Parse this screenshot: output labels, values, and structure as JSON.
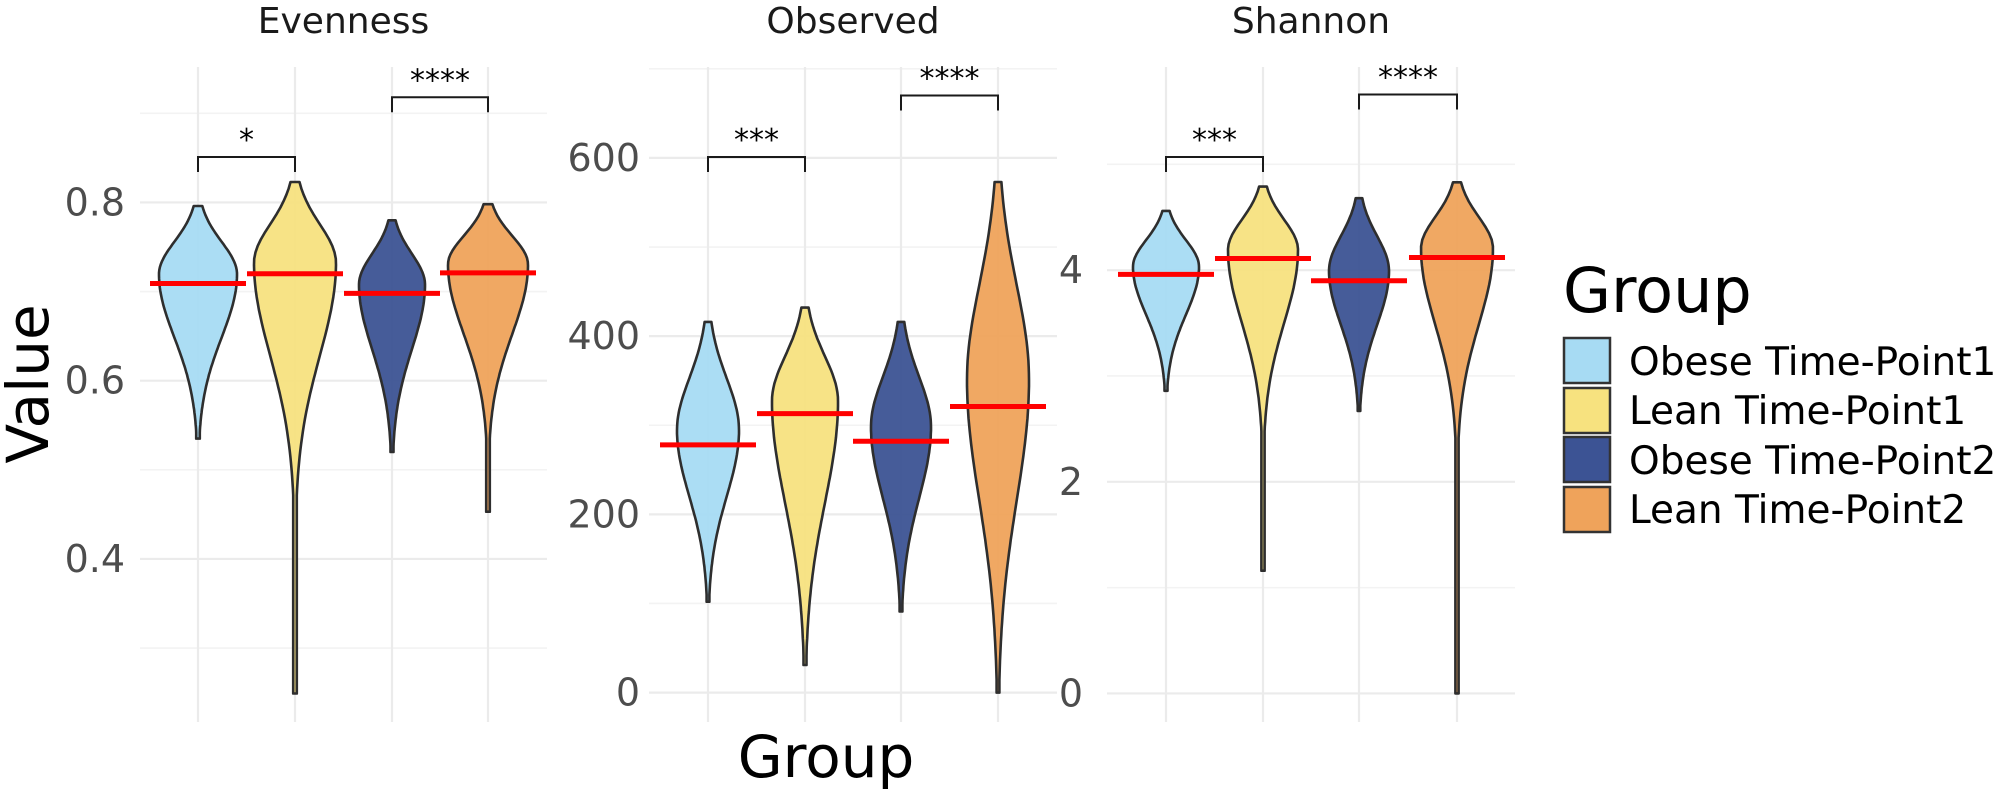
{
  "chart_data": {
    "type": "violin",
    "ylabel": "Value",
    "xlabel": "Group",
    "legend": {
      "title": "Group",
      "position": "right",
      "entries": [
        {
          "label": "Obese Time-Point1",
          "color": "#A7DBF3"
        },
        {
          "label": "Lean Time-Point1",
          "color": "#F7E27F"
        },
        {
          "label": "Obese Time-Point2",
          "color": "#3C5394"
        },
        {
          "label": "Lean Time-Point2",
          "color": "#EFA35B"
        }
      ]
    },
    "median_line_color": "#FF0000",
    "grid": true,
    "x_tick_labels_shown": false,
    "facets": [
      {
        "title": "Evenness",
        "ylim": [
          0.217,
          0.952
        ],
        "major_ticks": [
          0.4,
          0.6,
          0.8
        ],
        "tick_labels": [
          "0.4",
          "0.6",
          "0.8"
        ],
        "minor_ticks": [
          0.3,
          0.5,
          0.7,
          0.9
        ],
        "violins": [
          {
            "group": "Obese Time-Point1",
            "min": 0.535,
            "max": 0.796,
            "median": 0.709
          },
          {
            "group": "Lean Time-Point1",
            "min": 0.249,
            "max": 0.823,
            "median": 0.72
          },
          {
            "group": "Obese Time-Point2",
            "min": 0.52,
            "max": 0.78,
            "median": 0.698
          },
          {
            "group": "Lean Time-Point2",
            "min": 0.453,
            "max": 0.798,
            "median": 0.721
          }
        ],
        "brackets": [
          {
            "from": "Obese Time-Point1",
            "to": "Lean Time-Point1",
            "y": 0.851,
            "label": "*"
          },
          {
            "from": "Obese Time-Point2",
            "to": "Lean Time-Point2",
            "y": 0.918,
            "label": "****"
          }
        ]
      },
      {
        "title": "Observed",
        "ylim": [
          -33,
          702
        ],
        "major_ticks": [
          0,
          200,
          400,
          600
        ],
        "tick_labels": [
          "0",
          "200",
          "400",
          "600"
        ],
        "minor_ticks": [
          100,
          300,
          500,
          700
        ],
        "violins": [
          {
            "group": "Obese Time-Point1",
            "min": 102,
            "max": 416,
            "median": 278
          },
          {
            "group": "Lean Time-Point1",
            "min": 31,
            "max": 432,
            "median": 313
          },
          {
            "group": "Obese Time-Point2",
            "min": 91,
            "max": 416,
            "median": 282
          },
          {
            "group": "Lean Time-Point2",
            "min": 0,
            "max": 573,
            "median": 321
          }
        ],
        "brackets": [
          {
            "from": "Obese Time-Point1",
            "to": "Lean Time-Point1",
            "y": 601,
            "label": "***"
          },
          {
            "from": "Obese Time-Point2",
            "to": "Lean Time-Point2",
            "y": 670,
            "label": "****"
          }
        ]
      },
      {
        "title": "Shannon",
        "ylim": [
          -0.27,
          5.92
        ],
        "major_ticks": [
          0,
          2,
          4
        ],
        "tick_labels": [
          "0",
          "2",
          "4"
        ],
        "minor_ticks": [
          1,
          3,
          5
        ],
        "violins": [
          {
            "group": "Obese Time-Point1",
            "min": 2.86,
            "max": 4.56,
            "median": 3.96
          },
          {
            "group": "Lean Time-Point1",
            "min": 1.16,
            "max": 4.79,
            "median": 4.11
          },
          {
            "group": "Obese Time-Point2",
            "min": 2.67,
            "max": 4.68,
            "median": 3.9
          },
          {
            "group": "Lean Time-Point2",
            "min": 0.0,
            "max": 4.83,
            "median": 4.12
          }
        ],
        "brackets": [
          {
            "from": "Obese Time-Point1",
            "to": "Lean Time-Point1",
            "y": 5.07,
            "label": "***"
          },
          {
            "from": "Obese Time-Point2",
            "to": "Lean Time-Point2",
            "y": 5.66,
            "label": "****"
          }
        ]
      }
    ]
  }
}
